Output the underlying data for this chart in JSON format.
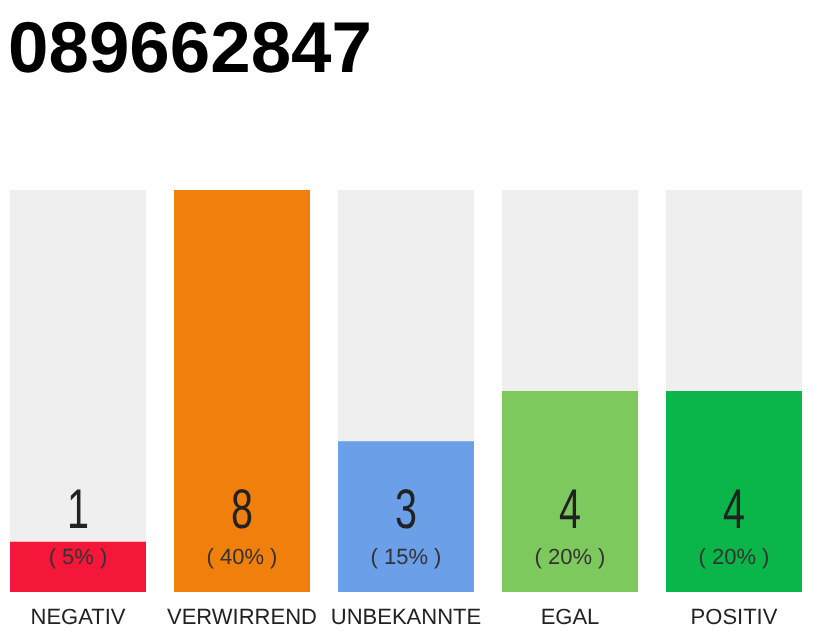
{
  "chart_data": {
    "type": "bar",
    "title": "089662847",
    "categories": [
      "NEGATIV",
      "VERWIRREND",
      "UNBEKANNTE",
      "EGAL",
      "POSITIV"
    ],
    "values": [
      1,
      8,
      3,
      4,
      4
    ],
    "colors": [
      "#f5173a",
      "#f07f0c",
      "#6b9fe8",
      "#7dc95e",
      "#0ab54a"
    ],
    "ylim": [
      0,
      8
    ],
    "tick_labels": "x",
    "data_labels": true,
    "annotations": [
      "( 5% )",
      "( 40% )",
      "( 15% )",
      "( 20% )",
      "( 20% )"
    ]
  }
}
